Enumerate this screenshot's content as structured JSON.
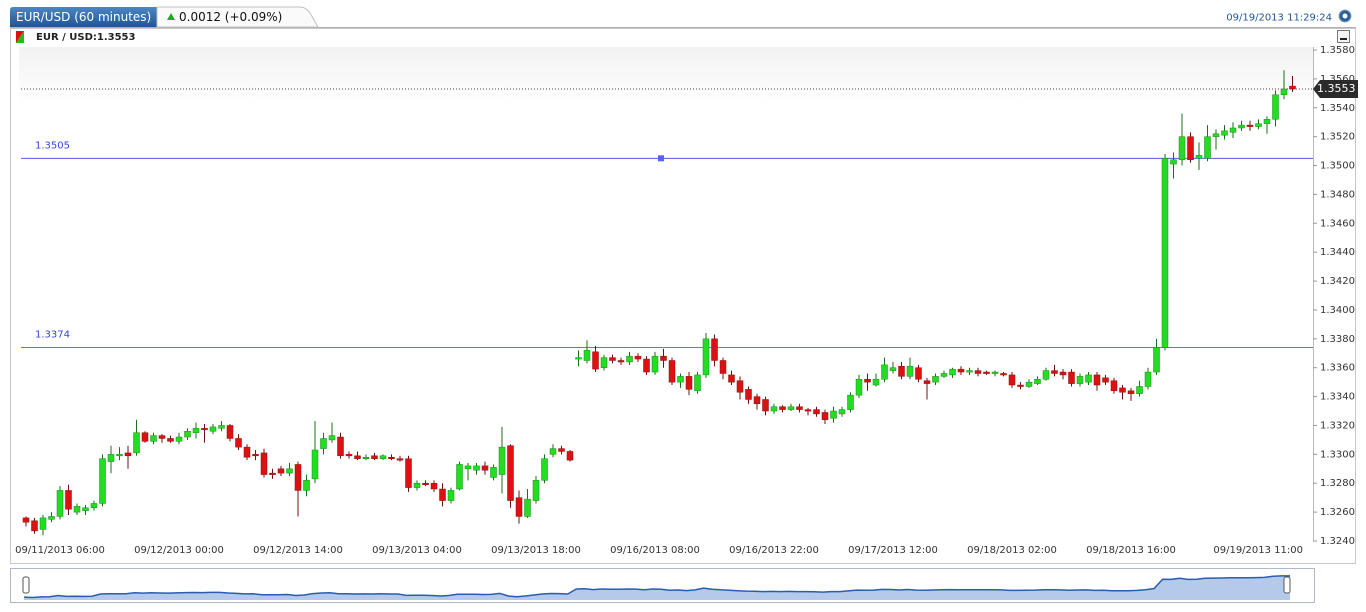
{
  "header": {
    "title": "EUR/USD (60 minutes)",
    "change": "0.0012 (+0.09%)",
    "timestamp": "09/19/2013 11:29:24",
    "instrument": "EUR / USD:1.3553"
  },
  "chart_data": {
    "type": "candlestick",
    "up_color": "#22dd22",
    "down_color": "#dd1111",
    "ylim": [
      1.324,
      1.358
    ],
    "yticks": [
      {
        "value": 1.324,
        "label": "1.3240"
      },
      {
        "value": 1.326,
        "label": "1.3260"
      },
      {
        "value": 1.328,
        "label": "1.3280"
      },
      {
        "value": 1.33,
        "label": "1.3300"
      },
      {
        "value": 1.332,
        "label": "1.3320"
      },
      {
        "value": 1.334,
        "label": "1.3340"
      },
      {
        "value": 1.336,
        "label": "1.3360"
      },
      {
        "value": 1.338,
        "label": "1.3380"
      },
      {
        "value": 1.34,
        "label": "1.3400"
      },
      {
        "value": 1.342,
        "label": "1.3420"
      },
      {
        "value": 1.344,
        "label": "1.3440"
      },
      {
        "value": 1.346,
        "label": "1.3460"
      },
      {
        "value": 1.348,
        "label": "1.3480"
      },
      {
        "value": 1.35,
        "label": "1.3500"
      },
      {
        "value": 1.352,
        "label": "1.3520"
      },
      {
        "value": 1.354,
        "label": "1.3540"
      },
      {
        "value": 1.356,
        "label": "1.3560"
      },
      {
        "value": 1.358,
        "label": "1.3580"
      }
    ],
    "hlines": [
      1.3505,
      1.3374
    ],
    "last_price": 1.3553,
    "categories": [
      null,
      null,
      null,
      null,
      "09/11/2013 06:00",
      null,
      null,
      null,
      null,
      null,
      null,
      null,
      null,
      null,
      null,
      null,
      null,
      null,
      "09/12/2013 00:00",
      null,
      null,
      null,
      null,
      null,
      null,
      null,
      null,
      null,
      null,
      null,
      null,
      null,
      "09/12/2013 14:00",
      null,
      null,
      null,
      null,
      null,
      null,
      null,
      null,
      null,
      null,
      null,
      null,
      null,
      "09/13/2013 04:00",
      null,
      null,
      null,
      null,
      null,
      null,
      null,
      null,
      null,
      null,
      null,
      null,
      null,
      "09/13/2013 18:00",
      null,
      null,
      null,
      null,
      null,
      null,
      null,
      null,
      null,
      null,
      null,
      null,
      null,
      "09/16/2013 08:00",
      null,
      null,
      null,
      null,
      null,
      null,
      null,
      null,
      null,
      null,
      null,
      null,
      null,
      "09/16/2013 22:00",
      null,
      null,
      null,
      null,
      null,
      null,
      null,
      null,
      null,
      null,
      null,
      null,
      null,
      "09/17/2013 12:00",
      null,
      null,
      null,
      null,
      null,
      null,
      null,
      null,
      null,
      null,
      null,
      null,
      null,
      "09/18/2013 02:00",
      null,
      null,
      null,
      null,
      null,
      null,
      null,
      null,
      null,
      null,
      null,
      null,
      null,
      "09/18/2013 16:00",
      null,
      null,
      null,
      null,
      null,
      null,
      null,
      null,
      null,
      null,
      null,
      null,
      null,
      null,
      null,
      null,
      null,
      null,
      "09/19/2013 11:00"
    ],
    "open": [
      1.3256,
      1.3254,
      1.3248,
      1.3255,
      1.3257,
      1.3275,
      1.326,
      1.3261,
      1.3263,
      1.3266,
      1.3295,
      1.3299,
      1.3301,
      1.3301,
      1.3315,
      1.3309,
      1.3313,
      1.3311,
      1.3309,
      1.3312,
      1.3315,
      1.3318,
      1.3316,
      1.3318,
      1.332,
      1.3311,
      1.3305,
      1.33,
      1.3301,
      1.3287,
      1.329,
      1.3287,
      1.3293,
      1.3275,
      1.3283,
      1.3304,
      1.331,
      1.3312,
      1.33,
      1.3299,
      1.3297,
      1.3299,
      1.3297,
      1.3298,
      1.3297,
      1.3297,
      1.3277,
      1.328,
      1.328,
      1.3276,
      1.3268,
      1.3276,
      1.329,
      1.3289,
      1.3292,
      1.3284,
      1.3286,
      1.3306,
      1.327,
      1.3257,
      1.3268,
      1.3282,
      1.33,
      1.3304,
      1.3302,
      1.3366,
      1.3365,
      1.3371,
      1.336,
      1.3367,
      1.3365,
      1.3364,
      1.3368,
      1.3366,
      1.3357,
      1.3368,
      1.3365,
      1.335,
      1.3354,
      1.3344,
      1.3355,
      1.338,
      1.3365,
      1.3355,
      1.3351,
      1.3345,
      1.334,
      1.3338,
      1.333,
      1.3333,
      1.3331,
      1.3333,
      1.3331,
      1.3331,
      1.3329,
      1.3325,
      1.3328,
      1.3331,
      1.3341,
      1.3352,
      1.3348,
      1.3352,
      1.3358,
      1.3361,
      1.3354,
      1.336,
      1.3351,
      1.335,
      1.3354,
      1.3355,
      1.3359,
      1.3357,
      1.3358,
      1.3357,
      1.3356,
      1.3356,
      1.3355,
      1.3348,
      1.3347,
      1.3349,
      1.3352,
      1.3358,
      1.3357,
      1.3357,
      1.3349,
      1.335,
      1.3355,
      1.3353,
      1.3351,
      1.3346,
      1.3344,
      1.3342,
      1.3347,
      1.3357,
      1.3374,
      1.3501,
      1.3504,
      1.352,
      1.3505,
      1.3505,
      1.352,
      1.3521,
      1.3523,
      1.3526,
      1.3528,
      1.3527,
      1.3529,
      1.3532,
      1.3549,
      1.3555
    ],
    "high": [
      1.3257,
      1.3256,
      1.3258,
      1.326,
      1.3278,
      1.3279,
      1.3266,
      1.3265,
      1.3268,
      1.33,
      1.3306,
      1.3305,
      1.3306,
      1.3324,
      1.3316,
      1.3315,
      1.3314,
      1.3313,
      1.3315,
      1.3318,
      1.3322,
      1.3321,
      1.3321,
      1.3323,
      1.3321,
      1.3314,
      1.3307,
      1.3303,
      1.3304,
      1.329,
      1.3292,
      1.3294,
      1.3295,
      1.3286,
      1.3323,
      1.3315,
      1.3322,
      1.3315,
      1.3302,
      1.3302,
      1.33,
      1.3301,
      1.33,
      1.33,
      1.3299,
      1.3299,
      1.3282,
      1.3282,
      1.3282,
      1.328,
      1.3277,
      1.3295,
      1.3294,
      1.3294,
      1.3295,
      1.3293,
      1.3319,
      1.3307,
      1.3275,
      1.3276,
      1.3285,
      1.33,
      1.3307,
      1.3306,
      1.3303,
      1.3372,
      1.3379,
      1.3375,
      1.3369,
      1.3369,
      1.3367,
      1.3371,
      1.337,
      1.3368,
      1.3371,
      1.3373,
      1.3367,
      1.3356,
      1.3357,
      1.3357,
      1.3384,
      1.3383,
      1.3367,
      1.3358,
      1.3354,
      1.3347,
      1.3342,
      1.334,
      1.3335,
      1.3334,
      1.3335,
      1.3335,
      1.3332,
      1.3333,
      1.3331,
      1.3333,
      1.3333,
      1.3343,
      1.3355,
      1.3356,
      1.3356,
      1.3367,
      1.3364,
      1.3364,
      1.3367,
      1.3362,
      1.3353,
      1.3356,
      1.3358,
      1.336,
      1.3361,
      1.336,
      1.336,
      1.3358,
      1.3358,
      1.3357,
      1.3357,
      1.335,
      1.3352,
      1.3354,
      1.336,
      1.3362,
      1.3359,
      1.3359,
      1.3356,
      1.3357,
      1.3357,
      1.3355,
      1.3353,
      1.3348,
      1.3346,
      1.3351,
      1.336,
      1.338,
      1.3508,
      1.3509,
      1.3536,
      1.3523,
      1.3516,
      1.3528,
      1.3525,
      1.3528,
      1.353,
      1.3531,
      1.3531,
      1.3532,
      1.3534,
      1.3552,
      1.3566,
      1.3562
    ],
    "low": [
      1.325,
      1.3245,
      1.3244,
      1.3253,
      1.3255,
      1.3258,
      1.3258,
      1.3258,
      1.3261,
      1.3264,
      1.3287,
      1.3296,
      1.329,
      1.3299,
      1.3308,
      1.3307,
      1.3308,
      1.3308,
      1.3307,
      1.331,
      1.3311,
      1.3308,
      1.3314,
      1.3316,
      1.3309,
      1.3303,
      1.3296,
      1.3296,
      1.3284,
      1.3283,
      1.3285,
      1.3285,
      1.3257,
      1.3271,
      1.328,
      1.33,
      1.3308,
      1.3297,
      1.3297,
      1.3296,
      1.3296,
      1.3296,
      1.3296,
      1.3296,
      1.3295,
      1.3274,
      1.3275,
      1.3278,
      1.3274,
      1.3264,
      1.3266,
      1.3275,
      1.3282,
      1.3286,
      1.3286,
      1.3282,
      1.3273,
      1.3263,
      1.3252,
      1.3256,
      1.3266,
      1.328,
      1.3298,
      1.33,
      1.3295,
      1.3361,
      1.3363,
      1.3357,
      1.3358,
      1.3363,
      1.3362,
      1.3362,
      1.3364,
      1.3355,
      1.3355,
      1.336,
      1.3348,
      1.3346,
      1.3341,
      1.3342,
      1.3353,
      1.3361,
      1.3352,
      1.3348,
      1.3338,
      1.3335,
      1.3331,
      1.3327,
      1.3328,
      1.3329,
      1.333,
      1.3329,
      1.3327,
      1.3326,
      1.3321,
      1.3322,
      1.3326,
      1.3329,
      1.3339,
      1.3344,
      1.3347,
      1.335,
      1.3356,
      1.3352,
      1.3352,
      1.335,
      1.3338,
      1.3348,
      1.3353,
      1.3353,
      1.3355,
      1.3355,
      1.3354,
      1.3355,
      1.3354,
      1.3354,
      1.3346,
      1.3345,
      1.3346,
      1.3348,
      1.3351,
      1.3354,
      1.3352,
      1.3347,
      1.3347,
      1.3348,
      1.3344,
      1.3348,
      1.3342,
      1.3338,
      1.3337,
      1.334,
      1.3345,
      1.3355,
      1.3372,
      1.3491,
      1.35,
      1.3502,
      1.3497,
      1.3503,
      1.3511,
      1.3518,
      1.3519,
      1.3524,
      1.3524,
      1.3525,
      1.3522,
      1.3527,
      1.3546,
      1.3551
    ],
    "close": [
      1.3253,
      1.3247,
      1.3256,
      1.3257,
      1.3275,
      1.3262,
      1.3264,
      1.3263,
      1.3266,
      1.3297,
      1.33,
      1.33,
      1.3299,
      1.3315,
      1.3309,
      1.3313,
      1.3311,
      1.3309,
      1.3312,
      1.3316,
      1.3318,
      1.3317,
      1.3319,
      1.332,
      1.3311,
      1.3305,
      1.3298,
      1.3299,
      1.3286,
      1.3286,
      1.3287,
      1.329,
      1.3275,
      1.3282,
      1.3303,
      1.3311,
      1.3313,
      1.3299,
      1.3299,
      1.3297,
      1.3298,
      1.3297,
      1.3299,
      1.3297,
      1.3296,
      1.3277,
      1.328,
      1.3279,
      1.3276,
      1.3268,
      1.3275,
      1.3293,
      1.3292,
      1.3292,
      1.3289,
      1.3291,
      1.3305,
      1.3268,
      1.3257,
      1.3269,
      1.3282,
      1.3297,
      1.3304,
      1.3302,
      1.3296,
      1.3367,
      1.3372,
      1.3359,
      1.3367,
      1.3365,
      1.3364,
      1.3368,
      1.3366,
      1.3357,
      1.3368,
      1.3365,
      1.335,
      1.3354,
      1.3345,
      1.3355,
      1.338,
      1.3365,
      1.3356,
      1.335,
      1.3343,
      1.3338,
      1.3335,
      1.333,
      1.3333,
      1.3331,
      1.3333,
      1.3331,
      1.333,
      1.3328,
      1.3324,
      1.333,
      1.3331,
      1.3341,
      1.3352,
      1.335,
      1.3352,
      1.3362,
      1.336,
      1.3354,
      1.3361,
      1.3352,
      1.3349,
      1.3354,
      1.3356,
      1.3359,
      1.3357,
      1.3358,
      1.3356,
      1.3356,
      1.3357,
      1.3355,
      1.3348,
      1.3347,
      1.335,
      1.3352,
      1.3358,
      1.3356,
      1.3355,
      1.3349,
      1.3354,
      1.3355,
      1.3348,
      1.335,
      1.3344,
      1.3343,
      1.3342,
      1.3347,
      1.3357,
      1.3374,
      1.3505,
      1.3504,
      1.352,
      1.3504,
      1.3507,
      1.352,
      1.3522,
      1.3524,
      1.3526,
      1.3528,
      1.3527,
      1.3529,
      1.3532,
      1.3549,
      1.3553,
      1.3553
    ]
  }
}
